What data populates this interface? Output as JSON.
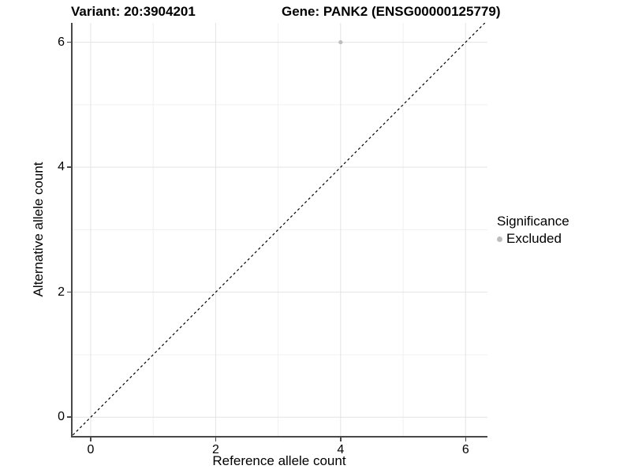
{
  "chart_data": {
    "type": "scatter",
    "title_left": "Variant: 20:3904201",
    "title_right": "Gene: PANK2 (ENSG00000125779)",
    "xlabel": "Reference allele count",
    "ylabel": "Alternative allele count",
    "xlim": [
      -0.29,
      6.35
    ],
    "ylim": [
      -0.3,
      6.31
    ],
    "x_ticks": [
      0,
      2,
      4,
      6
    ],
    "y_ticks": [
      0,
      2,
      4,
      6
    ],
    "x_minor_ticks": [
      1,
      3,
      5
    ],
    "y_minor_ticks": [
      1,
      3,
      5
    ],
    "grid": "on",
    "reference_line": {
      "kind": "identity",
      "slope": 1,
      "intercept": 0,
      "style": "dashed",
      "color": "#000000"
    },
    "series": [
      {
        "name": "Excluded",
        "marker": "circle",
        "color": "#bdbdbd",
        "points": [
          [
            4,
            6
          ]
        ]
      }
    ],
    "legend": {
      "position": "right",
      "title": "Significance",
      "entries": [
        {
          "label": "Excluded",
          "color": "#bdbdbd"
        }
      ]
    },
    "colors": {
      "grid_major": "#e3e3e3",
      "grid_minor": "#f0f0f0",
      "axis": "#484848",
      "text": "#000000"
    }
  }
}
